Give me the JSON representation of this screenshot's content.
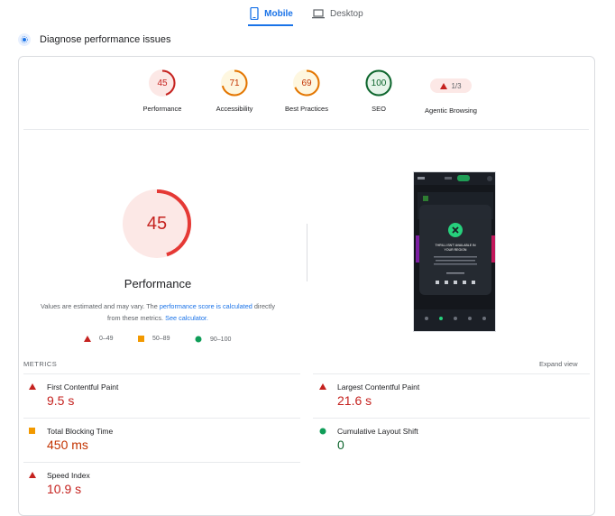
{
  "tabs": {
    "mobile": "Mobile",
    "desktop": "Desktop"
  },
  "diagnose": {
    "heading": "Diagnose performance issues"
  },
  "categories": [
    {
      "score": "45",
      "label": "Performance",
      "color": "#c5221f"
    },
    {
      "score": "71",
      "label": "Accessibility",
      "color": "#e37400"
    },
    {
      "score": "69",
      "label": "Best Practices",
      "color": "#e37400"
    },
    {
      "score": "100",
      "label": "SEO",
      "color": "#0d652d"
    },
    {
      "score": "1/3",
      "label": "Agentic Browsing",
      "color": "#c5221f"
    }
  ],
  "performance": {
    "score": "45",
    "score_fraction": 0.45,
    "title": "Performance",
    "note_prefix": "Values are estimated and may vary. The ",
    "note_link1": "performance score is calculated",
    "note_middle": " directly from these metrics. ",
    "note_link2": "See calculator."
  },
  "legend": {
    "poor": "0–49",
    "average": "50–89",
    "good": "90–100"
  },
  "screenshot": {
    "message_line1": "THRILL ISN'T AVAILABLE IN",
    "message_line2": "YOUR REGION"
  },
  "metrics": {
    "title": "METRICS",
    "expand": "Expand view",
    "items": [
      {
        "label": "First Contentful Paint",
        "value": "9.5 s",
        "rating": "poor"
      },
      {
        "label": "Largest Contentful Paint",
        "value": "21.6 s",
        "rating": "poor"
      },
      {
        "label": "Total Blocking Time",
        "value": "450 ms",
        "rating": "average"
      },
      {
        "label": "Cumulative Layout Shift",
        "value": "0",
        "rating": "good"
      },
      {
        "label": "Speed Index",
        "value": "10.9 s",
        "rating": "poor"
      }
    ]
  },
  "colors": {
    "accent": "#1a73e8",
    "poor": "#c5221f",
    "average": "#e37400",
    "good": "#0d652d"
  }
}
